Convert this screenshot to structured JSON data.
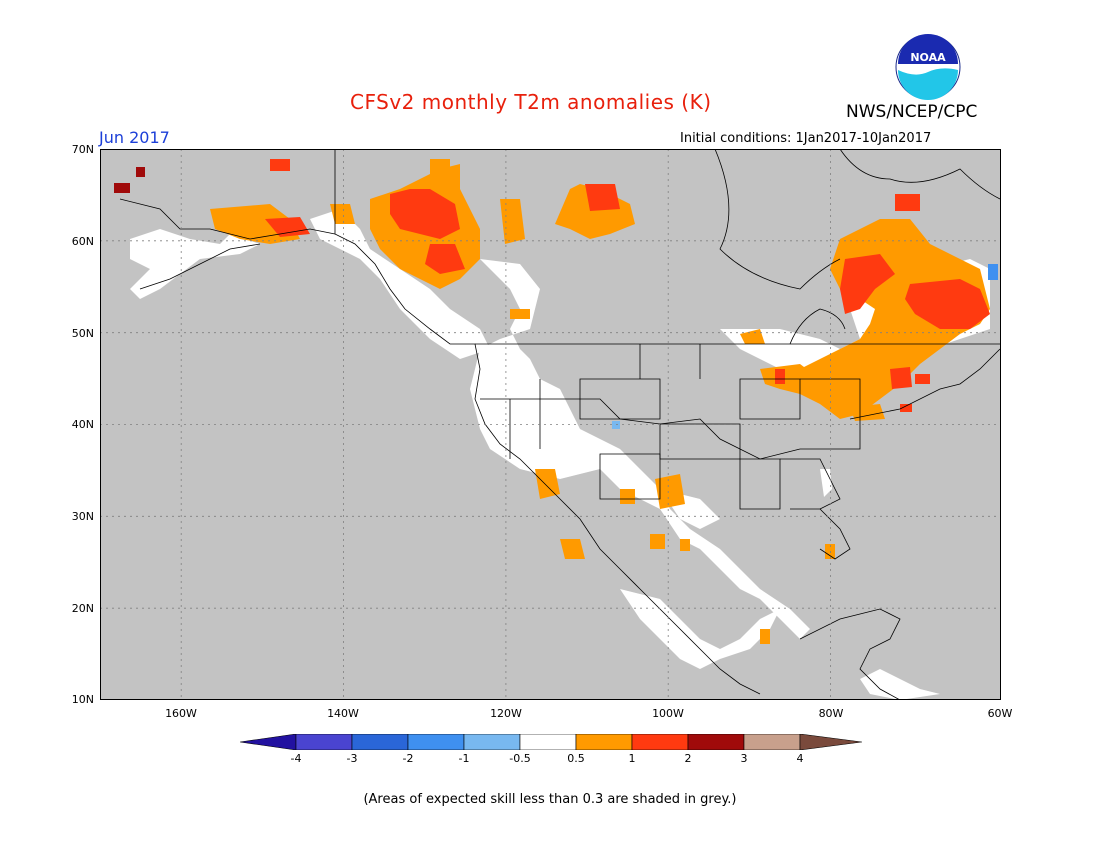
{
  "header": {
    "title": "CFSv2 monthly T2m anomalies (K)",
    "agency": "NWS/NCEP/CPC",
    "month": "Jun 2017",
    "initial_conditions": "Initial conditions: 1Jan2017-10Jan2017",
    "logo_text": "NOAA"
  },
  "axes": {
    "lat_labels": [
      "70N",
      "60N",
      "50N",
      "40N",
      "30N",
      "20N",
      "10N"
    ],
    "lon_labels": [
      "160W",
      "140W",
      "120W",
      "100W",
      "80W",
      "60W"
    ],
    "lat_range": [
      10,
      70
    ],
    "lon_range": [
      -171,
      -60
    ]
  },
  "colors": {
    "ocean_grey": "#c3c3c3",
    "land_white": "#ffffff",
    "gridline": "#808080"
  },
  "colorbar": {
    "labels": [
      "-4",
      "-3",
      "-2",
      "-1",
      "-0.5",
      "0.5",
      "1",
      "2",
      "3",
      "4"
    ],
    "swatches": [
      "#2211a0",
      "#4a44d0",
      "#2a66d8",
      "#3f90f0",
      "#78b8f0",
      "#ffffff",
      "#ff9a00",
      "#ff3a10",
      "#a00a0a",
      "#c8a08c",
      "#7a4a3c"
    ]
  },
  "footnote": "(Areas of expected skill less than 0.3 are shaded in grey.)"
}
